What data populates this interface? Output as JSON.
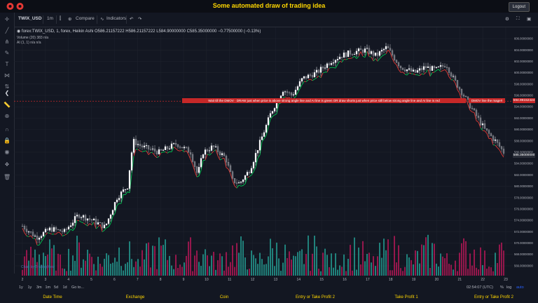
{
  "page": {
    "title": "Some automated draw of trading idea",
    "logout_label": "Logout"
  },
  "toolbar": {
    "symbol": "TWIX_USD",
    "interval": "1m",
    "compare": "Compare",
    "indicators": "Indicators"
  },
  "legend": {
    "series": "forex:TWIX_USD, 1, forex, Heikin Ashi",
    "open": "O586.21157222",
    "high": "H586.21157222",
    "low": "L584.90000000",
    "close": "C585.35000000",
    "change": "−0.77500000 (−0.13%)",
    "volume_label": "Volume (20)",
    "volume_values": "383   n/a",
    "ai_label": "AI (1, 1)",
    "ai_values": "n/a   n/a"
  },
  "annotation": {
    "text": "Wait till the DMOV  ·  DRAW just when price is above strong angle line and AI line is green   OR   draw shorts just when price still below strong angle line and AI line is red",
    "side_text": "DMOV line the mage!!"
  },
  "price_tag": "594.99152424",
  "last_price_tag": "585.35000000",
  "chart_data": {
    "type": "candlestick",
    "y_axis_labels": [
      "606.00000000",
      "604.00000000",
      "602.00000000",
      "600.00000000",
      "598.00000000",
      "596.00000000",
      "594.00000000",
      "592.00000000",
      "590.00000000",
      "588.00000000",
      "586.00000000",
      "584.00000000",
      "582.00000000",
      "580.00000000",
      "578.00000000",
      "576.00000000",
      "574.00000000",
      "572.00000000",
      "570.00000000",
      "568.00000000",
      "566.00000000"
    ],
    "ylim": [
      565,
      607
    ],
    "x_axis_labels": [
      "2",
      "3",
      "4",
      "5",
      "6",
      "7",
      "8",
      "9",
      "10",
      "11",
      "12",
      "13",
      "14",
      "15",
      "16",
      "17",
      "18",
      "19",
      "20",
      "21",
      "22",
      "23"
    ],
    "colors": {
      "up": "#e0e3eb",
      "down": "#9e9ea5",
      "ai_up": "#00c853",
      "ai_down": "#e53935",
      "vol_up": "#26a69a",
      "vol_down": "#c2185b"
    }
  },
  "watermark": "Chart by TradingView",
  "bottom": {
    "ranges": [
      "1y",
      "1y",
      "3m",
      "1m",
      "5d",
      "1d",
      "Go to..."
    ],
    "time": "02:54:07 (UTC)",
    "pct": "%",
    "log": "log",
    "auto": "auto"
  },
  "tabs": [
    "Date Time",
    "Exchange",
    "Coin",
    "Entry or Take Profit 2",
    "Take Profit 1",
    "Entry or Take Profit 2"
  ]
}
